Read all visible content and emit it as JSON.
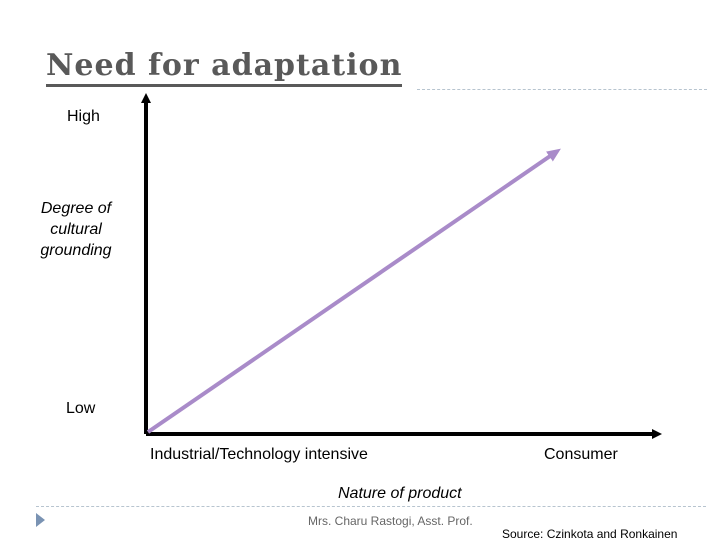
{
  "slide": {
    "title": "Need for adaptation",
    "author": "Mrs. Charu Rastogi, Asst. Prof.",
    "source": "Source: Czinkota and Ronkainen"
  },
  "axes": {
    "y_high": "High",
    "y_low": "Low",
    "y_title": "Degree of cultural grounding",
    "x_left": "Industrial/Technology intensive",
    "x_right": "Consumer",
    "x_title": "Nature of product"
  },
  "colors": {
    "title": "#595959",
    "trend_line": "#a98bc9",
    "axis": "#000000",
    "rule": "#b7c4cf",
    "bullet": "#7a93b3"
  },
  "icons": {
    "bullet": "triangle-bullet-icon"
  }
}
